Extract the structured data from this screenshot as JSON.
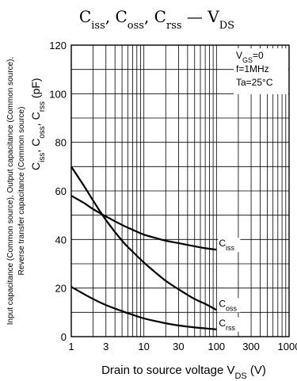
{
  "chart_data": {
    "type": "line",
    "title": {
      "parts": [
        {
          "text": "C",
          "sub": "iss"
        },
        {
          "text": ", C",
          "sub": "oss"
        },
        {
          "text": ", C",
          "sub": "rss"
        },
        {
          "text": " — V",
          "sub": "DS"
        }
      ]
    },
    "x_scale": "log",
    "xlim": [
      1,
      1000
    ],
    "ylim": [
      0,
      120
    ],
    "x_ticks": [
      1,
      3,
      10,
      30,
      100,
      300,
      1000
    ],
    "x_tick_labels": [
      "1",
      "3",
      "10",
      "30",
      "100",
      "300",
      "1000"
    ],
    "y_ticks": [
      0,
      20,
      40,
      60,
      80,
      100,
      120
    ],
    "y_tick_labels": [
      "0",
      "20",
      "40",
      "60",
      "80",
      "100",
      "120"
    ],
    "grid": true,
    "xlabel": {
      "text": "Drain to source voltage  V",
      "sub": "DS",
      "unit": "(V)"
    },
    "ylabel_lines": [
      "Input capacitance (Common source), Output capacitance (Common source),",
      "Reverse transfer capacitance (Common source)"
    ],
    "ylabel_symbol": {
      "parts": [
        {
          "text": "C",
          "sub": "iss"
        },
        {
          "text": ", C",
          "sub": "oss"
        },
        {
          "text": ", C",
          "sub": "rss"
        }
      ],
      "unit": "(pF)"
    },
    "conditions": [
      {
        "text": "V",
        "sub": "GS",
        "after": "=0"
      },
      {
        "text": "f=1MHz",
        "sub": "",
        "after": ""
      },
      {
        "text": "Ta=25°C",
        "sub": "",
        "after": ""
      }
    ],
    "series": [
      {
        "name": "Ciss",
        "label": {
          "text": "C",
          "sub": "iss"
        },
        "x": [
          1,
          1.5,
          2,
          3,
          5,
          7,
          10,
          15,
          20,
          30,
          50,
          70,
          100
        ],
        "y": [
          58,
          55,
          52.5,
          49.5,
          46,
          44,
          42,
          40.5,
          39.5,
          38.5,
          37.2,
          36.4,
          35.8
        ]
      },
      {
        "name": "Coss",
        "label": {
          "text": "C",
          "sub": "oss"
        },
        "x": [
          1,
          1.5,
          2,
          3,
          5,
          7,
          10,
          15,
          20,
          30,
          50,
          70,
          100
        ],
        "y": [
          70,
          62,
          56,
          48,
          39.5,
          35,
          30.5,
          26,
          23,
          19.5,
          15.5,
          13.5,
          11
        ]
      },
      {
        "name": "Crss",
        "label": {
          "text": "C",
          "sub": "rss"
        },
        "x": [
          1,
          1.5,
          2,
          3,
          5,
          7,
          10,
          15,
          20,
          30,
          50,
          70,
          100
        ],
        "y": [
          20.5,
          17.5,
          15.5,
          13,
          10.5,
          9,
          7.5,
          6.3,
          5.5,
          4.6,
          3.8,
          3.4,
          3
        ]
      }
    ]
  }
}
